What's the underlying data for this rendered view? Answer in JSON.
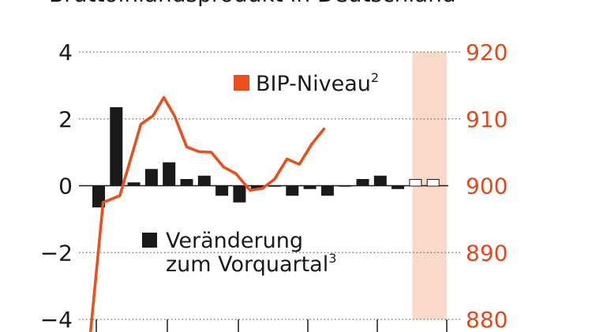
{
  "title": "Bruttoinlandsprodukt in Deutschland",
  "colors": {
    "bar": "#1a1a1a",
    "line": "#e8501e",
    "forecast_band": "#f9d9c9",
    "right_axis_text": "#e0491c",
    "grid": "#666666"
  },
  "legend": {
    "line_label": "BIP-Niveau",
    "line_sup": "2",
    "bar_label_1": "Veränderung",
    "bar_label_2": "zum Vorquartal",
    "bar_sup": "3"
  },
  "chart_data": {
    "type": "bar+line",
    "left_axis": {
      "ylim": [
        -4,
        4
      ],
      "ticks": [
        4,
        2,
        0,
        -2,
        -4
      ],
      "tick_labels": [
        "4",
        "2",
        "0",
        "−2",
        "−4"
      ]
    },
    "right_axis": {
      "ylim": [
        880,
        920
      ],
      "ticks": [
        920,
        910,
        900,
        890,
        880
      ],
      "tick_labels": [
        "920",
        "910",
        "900",
        "890",
        "880"
      ]
    },
    "grid": true,
    "forecast_quarters": 2,
    "bars": [
      -0.65,
      2.35,
      0.1,
      0.5,
      0.7,
      0.2,
      0.3,
      -0.3,
      -0.5,
      -0.1,
      0.0,
      -0.3,
      -0.1,
      -0.3,
      0.0,
      0.2,
      0.3,
      -0.1,
      0.2,
      0.2
    ],
    "forecast_bars": [
      false,
      false,
      false,
      false,
      false,
      false,
      false,
      false,
      false,
      false,
      false,
      false,
      false,
      false,
      false,
      false,
      false,
      false,
      true,
      true
    ],
    "line": [
      [
        -0.5,
        877
      ],
      [
        0.25,
        897.5
      ],
      [
        1.2,
        898.5
      ],
      [
        2.4,
        909.2
      ],
      [
        3.1,
        910.5
      ],
      [
        3.7,
        913.2
      ],
      [
        4.3,
        910.5
      ],
      [
        5.0,
        905.8
      ],
      [
        5.7,
        905.1
      ],
      [
        6.4,
        905.0
      ],
      [
        7.1,
        902.8
      ],
      [
        7.8,
        901.8
      ],
      [
        8.6,
        899.3
      ],
      [
        9.3,
        899.6
      ],
      [
        10.0,
        901.0
      ],
      [
        10.7,
        904.0
      ],
      [
        11.4,
        903.2
      ],
      [
        12.1,
        906.2
      ],
      [
        12.8,
        908.5
      ]
    ]
  }
}
